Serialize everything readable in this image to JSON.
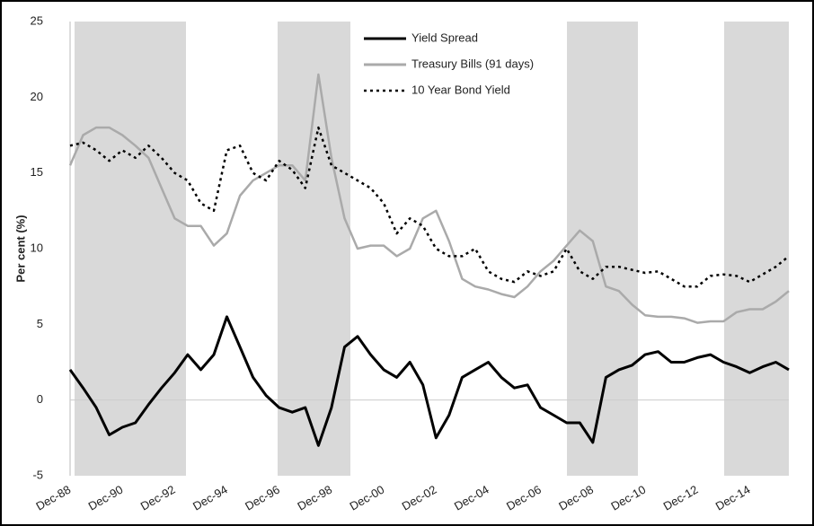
{
  "chart_data": {
    "type": "line",
    "ylabel": "Per cent (%)",
    "categories": [
      "Dec-88",
      null,
      null,
      null,
      "Dec-90",
      null,
      null,
      null,
      "Dec-92",
      null,
      null,
      null,
      "Dec-94",
      null,
      null,
      null,
      "Dec-96",
      null,
      null,
      null,
      "Dec-98",
      null,
      null,
      null,
      "Dec-00",
      null,
      null,
      null,
      "Dec-02",
      null,
      null,
      null,
      "Dec-04",
      null,
      null,
      null,
      "Dec-06",
      null,
      null,
      null,
      "Dec-08",
      null,
      null,
      null,
      "Dec-10",
      null,
      null,
      null,
      "Dec-12",
      null,
      null,
      null,
      "Dec-14",
      null,
      null,
      null
    ],
    "series": [
      {
        "name": "Yield Spread",
        "color": "#000000",
        "style": "solid",
        "values": [
          2,
          0.8,
          -0.5,
          -2.3,
          -1.8,
          -1.5,
          -0.3,
          0.8,
          1.8,
          3.0,
          2.0,
          3.0,
          5.5,
          3.5,
          1.5,
          0.3,
          -0.5,
          -0.8,
          -0.5,
          -3.0,
          -0.5,
          3.5,
          4.2,
          3.0,
          2.0,
          1.5,
          2.5,
          1.0,
          -2.5,
          -1.0,
          1.5,
          2.0,
          2.5,
          1.5,
          0.8,
          1.0,
          -0.5,
          -1.0,
          -1.5,
          -1.5,
          -2.8,
          1.5,
          2.0,
          2.3,
          3.0,
          3.2,
          2.5,
          2.5,
          2.8,
          3.0,
          2.5,
          2.2,
          1.8,
          2.2,
          2.5,
          2.0
        ]
      },
      {
        "name": "Treasury Bills (91 days)",
        "color": "#aaaaaa",
        "style": "solid",
        "values": [
          15.5,
          17.5,
          18,
          18,
          17.5,
          16.8,
          16,
          14,
          12,
          11.5,
          11.5,
          10.2,
          11,
          13.5,
          14.5,
          15,
          15.5,
          15.5,
          14.5,
          21.5,
          16,
          12,
          10,
          10.2,
          10.2,
          9.5,
          10,
          12,
          12.5,
          10.5,
          8,
          7.5,
          7.3,
          7,
          6.8,
          7.5,
          8.5,
          9.2,
          10.2,
          11.2,
          10.5,
          7.5,
          7.2,
          6.3,
          5.6,
          5.5,
          5.5,
          5.4,
          5.1,
          5.2,
          5.2,
          5.8,
          6.0,
          6.0,
          6.5,
          7.2
        ]
      },
      {
        "name": "10 Year Bond Yield",
        "color": "#000000",
        "style": "dotted",
        "values": [
          16.8,
          17,
          16.5,
          15.8,
          16.5,
          16,
          16.8,
          16,
          15,
          14.5,
          13,
          12.5,
          16.5,
          16.8,
          15,
          14.5,
          15.8,
          15.2,
          14,
          18,
          15.5,
          15,
          14.5,
          14,
          13,
          11,
          12,
          11.5,
          10,
          9.5,
          9.5,
          10,
          8.5,
          8,
          7.8,
          8.5,
          8.2,
          8.5,
          10,
          8.5,
          8,
          8.8,
          8.8,
          8.6,
          8.4,
          8.5,
          8.0,
          7.5,
          7.5,
          8.2,
          8.3,
          8.2,
          7.8,
          8.3,
          8.8,
          9.5
        ]
      }
    ],
    "ylim": [
      -5,
      25
    ],
    "yticks": [
      -5,
      0,
      5,
      10,
      15,
      20,
      25
    ],
    "grid": false,
    "legend": "top"
  }
}
